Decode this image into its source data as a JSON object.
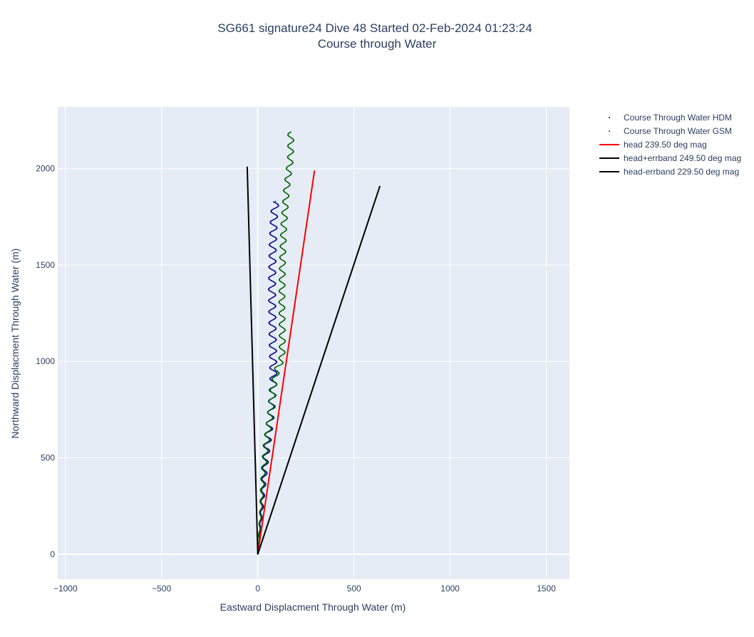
{
  "chart_data": {
    "type": "scatter",
    "title": "SG661 signature24 Dive 48 Started 02-Feb-2024 01:23:24",
    "subtitle": "Course through Water",
    "xlabel": "Eastward Displacment Through Water (m)",
    "ylabel": "Northward Displacment Through Water (m)",
    "xlim": [
      -1040,
      1620
    ],
    "ylim": [
      -130,
      2320
    ],
    "xticks": [
      {
        "value": -1000,
        "label": "−1000"
      },
      {
        "value": -500,
        "label": "−500"
      },
      {
        "value": 0,
        "label": "0"
      },
      {
        "value": 500,
        "label": "500"
      },
      {
        "value": 1000,
        "label": "1000"
      },
      {
        "value": 1500,
        "label": "1500"
      }
    ],
    "yticks": [
      {
        "value": 0,
        "label": "0"
      },
      {
        "value": 500,
        "label": "500"
      },
      {
        "value": 1000,
        "label": "1000"
      },
      {
        "value": 1500,
        "label": "1500"
      },
      {
        "value": 2000,
        "label": "2000"
      }
    ],
    "grid": true,
    "legend_position": "right",
    "series": [
      {
        "name": "Course Through Water HDM",
        "mode": "markers",
        "color": "#00008b",
        "style": "wavy",
        "path": [
          [
            0,
            0
          ],
          [
            10,
            100
          ],
          [
            20,
            220
          ],
          [
            30,
            360
          ],
          [
            42,
            500
          ],
          [
            55,
            620
          ],
          [
            70,
            740
          ],
          [
            78,
            850
          ],
          [
            82,
            900
          ],
          [
            80,
            1000
          ],
          [
            76,
            1200
          ],
          [
            74,
            1400
          ],
          [
            78,
            1600
          ],
          [
            84,
            1750
          ],
          [
            92,
            1830
          ]
        ],
        "wiggle_amplitude": 18,
        "wiggle_period": 58
      },
      {
        "name": "Course Through Water GSM",
        "mode": "markers",
        "color": "#006400",
        "style": "wavy",
        "path": [
          [
            0,
            0
          ],
          [
            8,
            120
          ],
          [
            18,
            260
          ],
          [
            28,
            420
          ],
          [
            42,
            560
          ],
          [
            62,
            700
          ],
          [
            80,
            860
          ],
          [
            100,
            960
          ],
          [
            125,
            1010
          ],
          [
            128,
            1100
          ],
          [
            125,
            1300
          ],
          [
            128,
            1500
          ],
          [
            135,
            1700
          ],
          [
            150,
            1900
          ],
          [
            170,
            2050
          ],
          [
            172,
            2190
          ]
        ],
        "wiggle_amplitude": 15,
        "wiggle_period": 58
      },
      {
        "name": "head 239.50 deg mag",
        "mode": "lines",
        "color": "#ff0000",
        "x": [
          0,
          295
        ],
        "y": [
          0,
          1990
        ]
      },
      {
        "name": "head+errband 249.50 deg mag",
        "mode": "lines",
        "color": "#000000",
        "x": [
          0,
          -55
        ],
        "y": [
          0,
          2010
        ]
      },
      {
        "name": "head-errband 229.50 deg mag",
        "mode": "lines",
        "color": "#000000",
        "x": [
          0,
          635
        ],
        "y": [
          0,
          1910
        ]
      }
    ]
  },
  "colors": {
    "plot_bg": "#e5ecf6",
    "grid": "#ffffff",
    "text": "#2a3f5f"
  }
}
